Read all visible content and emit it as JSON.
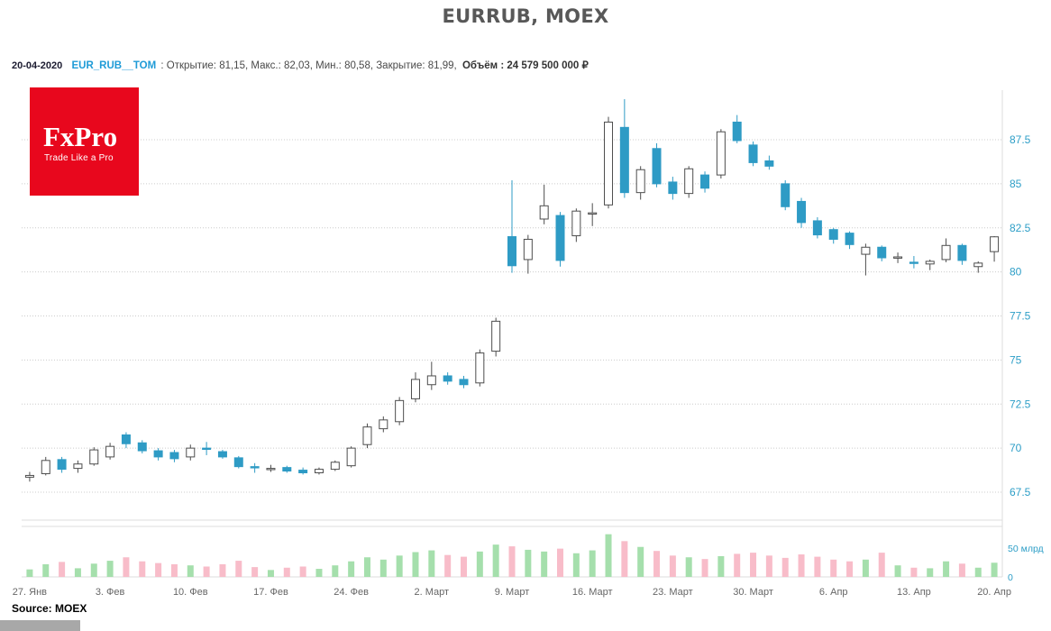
{
  "page": {
    "title": "EURRUB, MOEX",
    "source": "Source: MOEX"
  },
  "header": {
    "date": "20-04-2020",
    "symbol": "EUR_RUB__TOM",
    "symbol_color": "#1f9bd7",
    "stats": ": Открытие: 81,15, Макс.: 82,03, Мин.: 80,58, Закрытие: 81,99,",
    "volume_label": "Объём",
    "volume_value": ": 24 579 500 000 ₽"
  },
  "logo": {
    "name": "FxPro",
    "tagline": "Trade Like a Pro",
    "bg": "#e8071d"
  },
  "chart_data": {
    "type": "candlestick",
    "title": "EURRUB, MOEX",
    "price_axis": {
      "side": "right",
      "ticks": [
        87.5,
        85,
        82.5,
        80,
        77.5,
        75,
        72.5,
        70,
        67.5
      ],
      "range": [
        66.0,
        90.5
      ]
    },
    "volume_axis": {
      "ticks": [
        {
          "label": "50 млрд",
          "value": 50
        },
        {
          "label": "0",
          "value": 0
        }
      ],
      "unit": "млрд"
    },
    "x_labels": [
      "27. Янв",
      "3. Фев",
      "10. Фев",
      "17. Фев",
      "24. Фев",
      "2. Март",
      "9. Март",
      "16. Март",
      "23. Март",
      "30. Март",
      "6. Апр",
      "13. Апр",
      "20. Апр"
    ],
    "label_every": 5,
    "grid": "horizontal-dotted",
    "legend": "none",
    "colors": {
      "up_fill": "#ffffff",
      "up_stroke": "#4d4d4d",
      "down": "#2e9bc5",
      "vol_up": "#a5dfac",
      "vol_down": "#f8bcc9",
      "grid": "#cccccc",
      "axis_text": "#2d9ec7",
      "date_text": "#666666",
      "border": "#dddddd"
    },
    "candle_fields": [
      "date",
      "open",
      "high",
      "low",
      "close",
      "volume_bln"
    ],
    "candles": [
      [
        "27.01",
        68.35,
        68.65,
        68.1,
        68.45,
        13
      ],
      [
        "28.01",
        68.55,
        69.5,
        68.45,
        69.3,
        22
      ],
      [
        "29.01",
        69.35,
        69.5,
        68.6,
        68.8,
        26
      ],
      [
        "30.01",
        68.85,
        69.3,
        68.6,
        69.1,
        15
      ],
      [
        "31.01",
        69.1,
        70.05,
        69.0,
        69.9,
        23
      ],
      [
        "03.02",
        69.5,
        70.3,
        69.35,
        70.1,
        28
      ],
      [
        "04.02",
        70.75,
        70.9,
        70.0,
        70.25,
        34
      ],
      [
        "05.02",
        70.3,
        70.45,
        69.7,
        69.85,
        27
      ],
      [
        "06.02",
        69.85,
        70.0,
        69.3,
        69.5,
        24
      ],
      [
        "07.02",
        69.75,
        69.9,
        69.2,
        69.4,
        22
      ],
      [
        "10.02",
        69.5,
        70.2,
        69.3,
        70.0,
        20
      ],
      [
        "11.02",
        70.0,
        70.35,
        69.6,
        69.95,
        18
      ],
      [
        "12.02",
        69.8,
        69.9,
        69.4,
        69.5,
        22
      ],
      [
        "13.02",
        69.45,
        69.55,
        68.85,
        68.95,
        28
      ],
      [
        "14.02",
        68.95,
        69.15,
        68.6,
        68.9,
        17
      ],
      [
        "17.02",
        68.85,
        69.05,
        68.65,
        68.85,
        12
      ],
      [
        "18.02",
        68.9,
        69.0,
        68.6,
        68.7,
        16
      ],
      [
        "19.02",
        68.75,
        68.9,
        68.5,
        68.6,
        18
      ],
      [
        "20.02",
        68.6,
        68.9,
        68.5,
        68.8,
        14
      ],
      [
        "21.02",
        68.8,
        69.3,
        68.7,
        69.2,
        20
      ],
      [
        "24.02",
        69.0,
        70.1,
        68.9,
        70.0,
        27
      ],
      [
        "25.02",
        70.2,
        71.4,
        70.0,
        71.2,
        34
      ],
      [
        "26.02",
        71.1,
        71.8,
        70.9,
        71.6,
        30
      ],
      [
        "27.02",
        71.5,
        72.9,
        71.3,
        72.7,
        37
      ],
      [
        "28.02",
        72.8,
        74.3,
        72.6,
        73.9,
        43
      ],
      [
        "02.03",
        73.6,
        74.9,
        73.3,
        74.1,
        46
      ],
      [
        "03.03",
        74.1,
        74.3,
        73.6,
        73.8,
        38
      ],
      [
        "04.03",
        73.9,
        74.1,
        73.4,
        73.6,
        35
      ],
      [
        "05.03",
        73.7,
        75.6,
        73.5,
        75.4,
        44
      ],
      [
        "06.03",
        75.5,
        77.4,
        75.2,
        77.2,
        56
      ],
      [
        "09.03",
        82.0,
        85.2,
        79.95,
        80.35,
        53
      ],
      [
        "10.03",
        80.7,
        82.1,
        79.9,
        81.85,
        47
      ],
      [
        "11.03",
        83.0,
        84.95,
        82.7,
        83.75,
        44
      ],
      [
        "12.03",
        83.2,
        83.4,
        80.3,
        80.65,
        49
      ],
      [
        "13.03",
        82.05,
        83.6,
        81.7,
        83.45,
        41
      ],
      [
        "16.03",
        83.3,
        83.9,
        82.6,
        83.35,
        46
      ],
      [
        "17.03",
        83.8,
        88.8,
        83.6,
        88.5,
        74
      ],
      [
        "18.03",
        88.2,
        89.8,
        84.2,
        84.5,
        62
      ],
      [
        "19.03",
        84.5,
        86.0,
        84.1,
        85.8,
        52
      ],
      [
        "20.03",
        87.0,
        87.3,
        84.8,
        85.0,
        45
      ],
      [
        "23.03",
        85.1,
        85.4,
        84.1,
        84.45,
        37
      ],
      [
        "24.03",
        84.45,
        86.0,
        84.2,
        85.85,
        34
      ],
      [
        "25.03",
        85.5,
        85.7,
        84.5,
        84.75,
        31
      ],
      [
        "26.03",
        85.5,
        88.1,
        85.3,
        87.95,
        36
      ],
      [
        "27.03",
        88.5,
        88.9,
        87.3,
        87.45,
        40
      ],
      [
        "30.03",
        87.2,
        87.4,
        86.0,
        86.2,
        42
      ],
      [
        "31.03",
        86.3,
        86.6,
        85.8,
        86.0,
        37
      ],
      [
        "01.04",
        85.0,
        85.2,
        83.5,
        83.7,
        33
      ],
      [
        "02.04",
        84.0,
        84.2,
        82.5,
        82.8,
        39
      ],
      [
        "03.04",
        82.9,
        83.1,
        81.9,
        82.1,
        35
      ],
      [
        "06.04",
        82.4,
        82.5,
        81.6,
        81.85,
        30
      ],
      [
        "07.04",
        82.2,
        82.3,
        81.3,
        81.55,
        27
      ],
      [
        "08.04",
        81.0,
        81.6,
        79.8,
        81.4,
        30
      ],
      [
        "09.04",
        81.4,
        81.5,
        80.6,
        80.8,
        42
      ],
      [
        "10.04",
        80.8,
        81.1,
        80.5,
        80.85,
        20
      ],
      [
        "13.04",
        80.55,
        80.9,
        80.2,
        80.5,
        16
      ],
      [
        "14.04",
        80.45,
        80.7,
        80.1,
        80.6,
        15
      ],
      [
        "15.04",
        80.7,
        81.9,
        80.55,
        81.5,
        27
      ],
      [
        "16.04",
        81.5,
        81.6,
        80.4,
        80.65,
        23
      ],
      [
        "17.04",
        80.3,
        80.6,
        79.95,
        80.5,
        16
      ],
      [
        "20.04",
        81.15,
        82.03,
        80.58,
        81.99,
        24.6
      ]
    ]
  }
}
